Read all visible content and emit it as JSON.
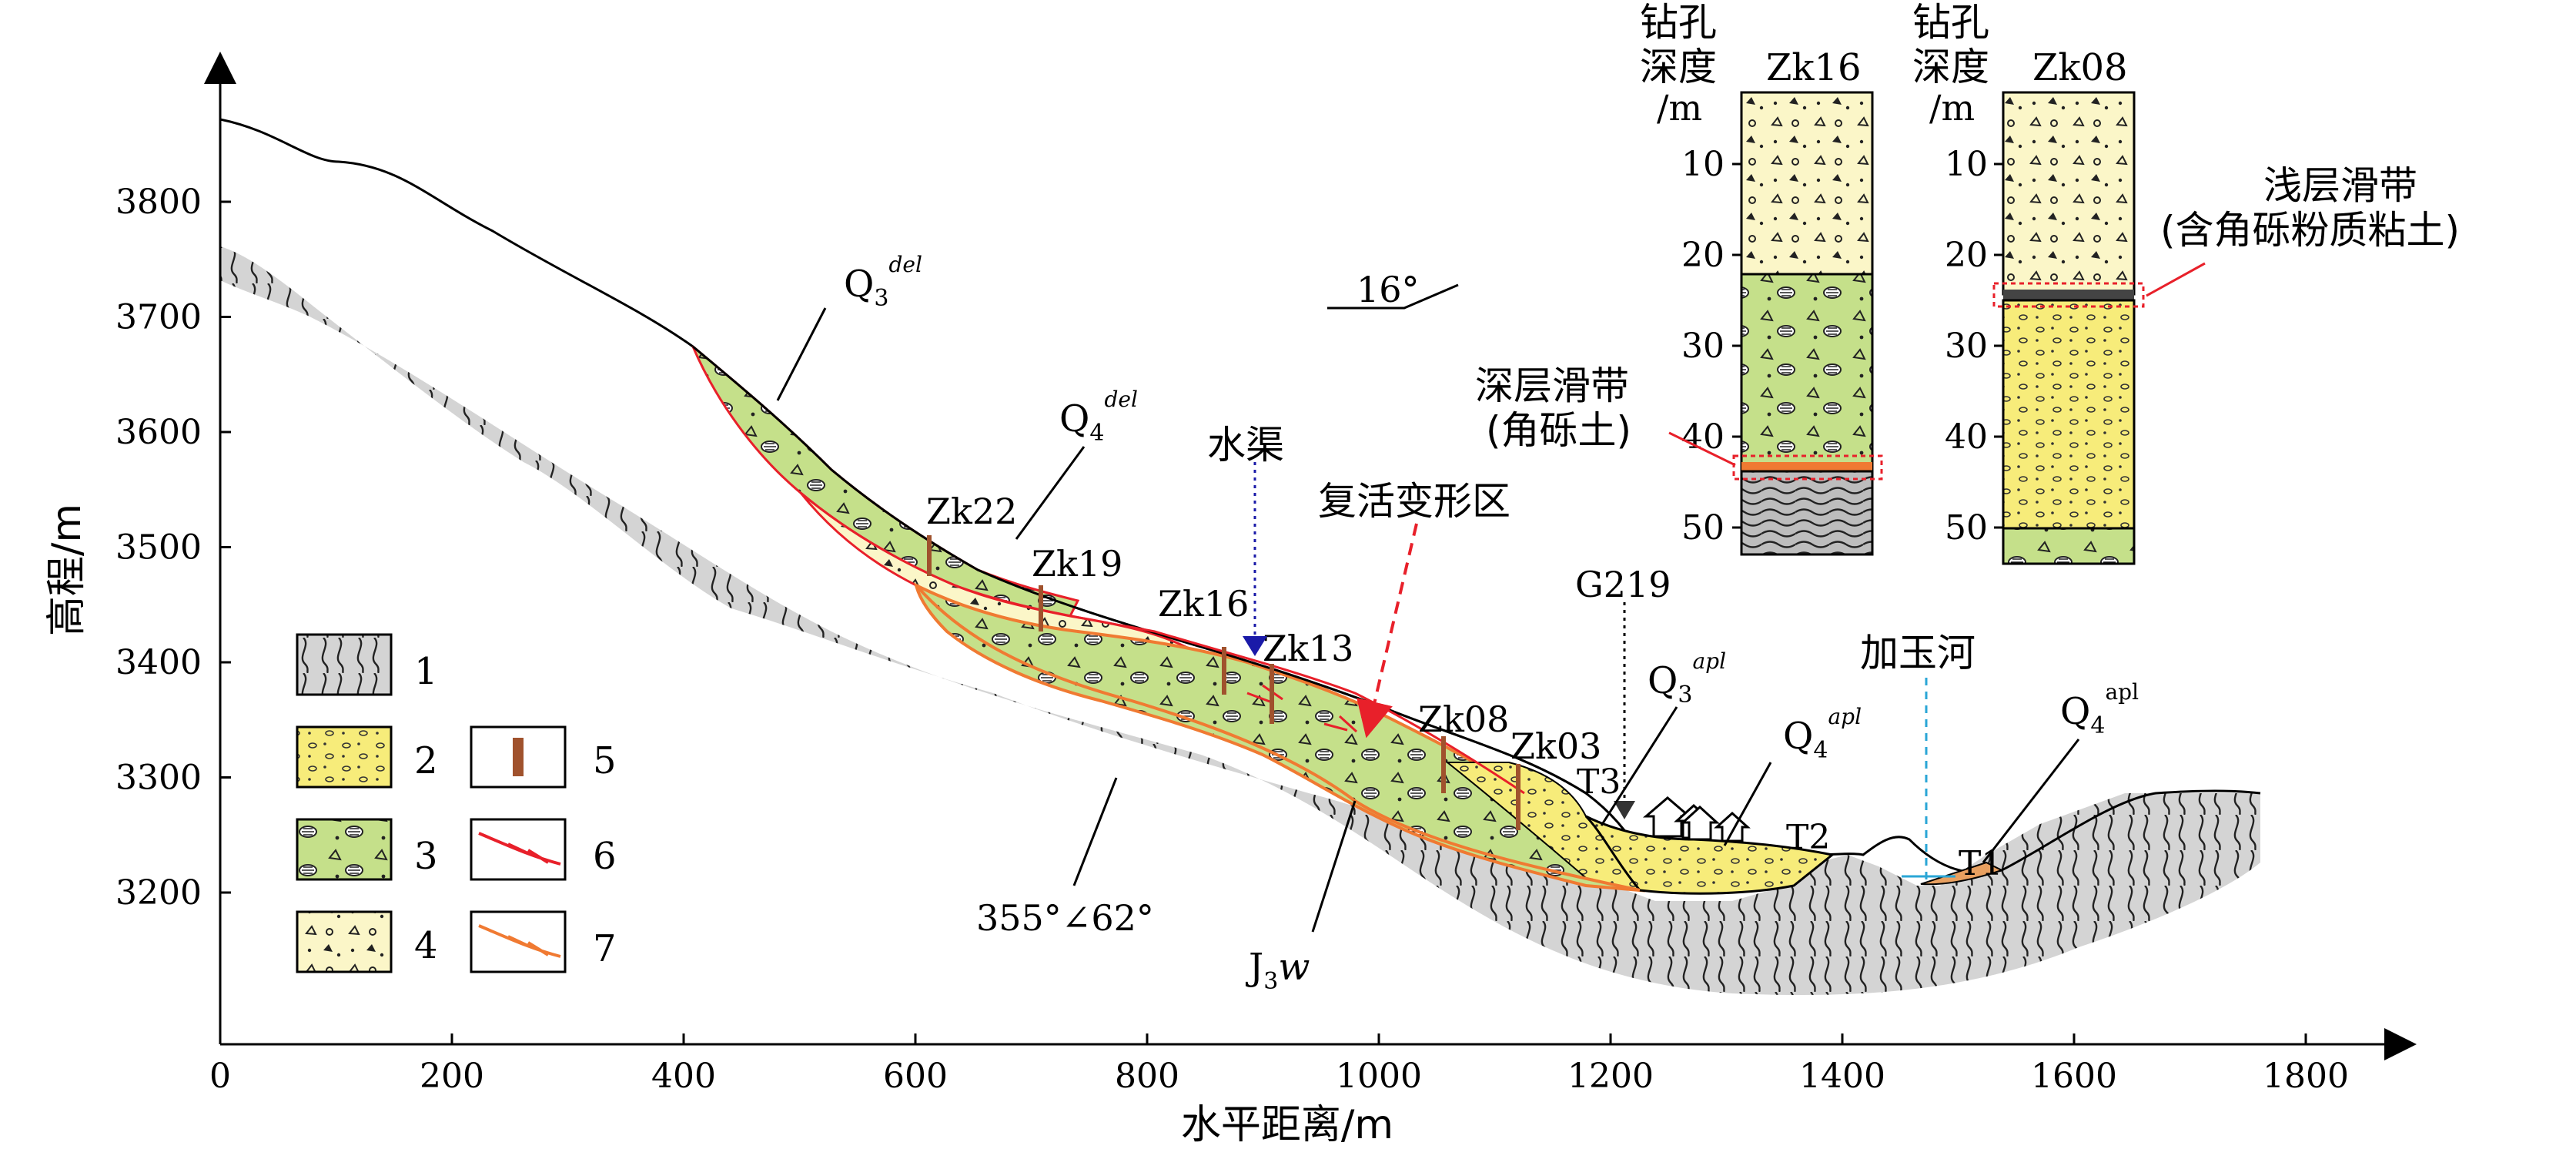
{
  "axes": {
    "x_label": "水平距离/m",
    "y_label": "高程/m",
    "x_ticks": [
      "0",
      "200",
      "400",
      "600",
      "800",
      "1000",
      "1200",
      "1400",
      "1600",
      "1800"
    ],
    "y_ticks": [
      "3800",
      "3700",
      "3600",
      "3500",
      "3400",
      "3300",
      "3200"
    ]
  },
  "units": {
    "q3del": {
      "base": "Q",
      "sub": "3",
      "sup": "del"
    },
    "q4del": {
      "base": "Q",
      "sub": "4",
      "sup": "del"
    },
    "q3apl": {
      "base": "Q",
      "sub": "3",
      "sup": "apl"
    },
    "q4apl_1": {
      "base": "Q",
      "sub": "4",
      "sup": "apl"
    },
    "q4apl_2": {
      "base": "Q",
      "sub": "4",
      "sup": "apl"
    },
    "j3w": {
      "base": "J",
      "sub": "3",
      "tail": "w"
    }
  },
  "labels": {
    "canal": "水渠",
    "reactivation_zone": "复活变形区",
    "road": "G219",
    "river": "加玉河",
    "bedding": "355°∠62°",
    "slope_angle": "16°",
    "deep_slip_zone_1": "深层滑带",
    "deep_slip_zone_2": "(角砾土)",
    "shallow_slip_zone_1": "浅层滑带",
    "shallow_slip_zone_2": "(含角砾粉质粘土)",
    "terrace_t1": "T1",
    "terrace_t2": "T2",
    "terrace_t3": "T3"
  },
  "boreholes": [
    "Zk22",
    "Zk19",
    "Zk16",
    "Zk13",
    "Zk08",
    "Zk03"
  ],
  "columns": [
    {
      "id": "Zk16",
      "header_1": "钻孔",
      "header_2": "深度",
      "header_3": "/m",
      "depth_ticks": [
        "10",
        "20",
        "30",
        "40",
        "50"
      ]
    },
    {
      "id": "Zk08",
      "header_1": "钻孔",
      "header_2": "深度",
      "header_3": "/m",
      "depth_ticks": [
        "10",
        "20",
        "30",
        "40",
        "50"
      ]
    }
  ],
  "legend": [
    "1",
    "2",
    "3",
    "4",
    "5",
    "6",
    "7"
  ],
  "colors": {
    "bedrock": "#d4d4d4",
    "gravel_yellow": "#f7ec7a",
    "green_debris": "#c5e08a",
    "pale_debris": "#fbf6c8",
    "slip_red": "#e8202a",
    "slip_orange": "#f07a32",
    "borehole": "#a0522d",
    "canal_blue": "#1a1aa8",
    "river_blue": "#2aa6d6"
  }
}
